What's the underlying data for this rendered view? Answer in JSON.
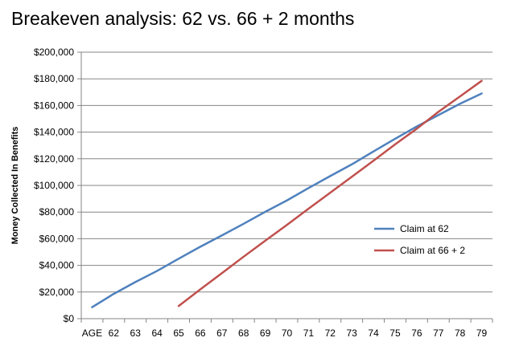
{
  "chart_data": {
    "type": "line",
    "title": "Breakeven analysis: 62 vs. 66 + 2 months",
    "xlabel": "",
    "ylabel": "Money Collected In Benefits",
    "categories": [
      "AGE",
      "62",
      "63",
      "64",
      "65",
      "66",
      "67",
      "68",
      "69",
      "70",
      "71",
      "72",
      "73",
      "74",
      "75",
      "76",
      "77",
      "78",
      "79"
    ],
    "ylim": [
      0,
      200000
    ],
    "yticks": [
      0,
      20000,
      40000,
      60000,
      80000,
      100000,
      120000,
      140000,
      160000,
      180000,
      200000
    ],
    "ytick_labels": [
      "$0",
      "$20,000",
      "$40,000",
      "$60,000",
      "$80,000",
      "$100,000",
      "$120,000",
      "$140,000",
      "$160,000",
      "$180,000",
      "$200,000"
    ],
    "grid": true,
    "legend_position": "right",
    "series": [
      {
        "name": "Claim at 62",
        "color": "#4f81bd",
        "values": [
          8600,
          18600,
          27500,
          35800,
          45000,
          54000,
          62500,
          71200,
          80200,
          88700,
          98000,
          107000,
          115800,
          125500,
          135000,
          144200,
          152800,
          161300,
          169000
        ]
      },
      {
        "name": "Claim at 66 + 2",
        "color": "#c0504d",
        "values": [
          null,
          null,
          null,
          null,
          9500,
          22000,
          34200,
          46500,
          58500,
          70300,
          82500,
          94500,
          106500,
          118500,
          130800,
          142500,
          155200,
          166800,
          178500
        ]
      }
    ]
  }
}
